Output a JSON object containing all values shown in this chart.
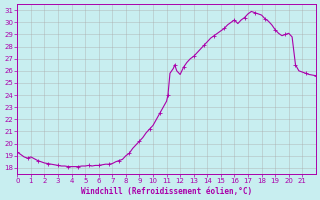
{
  "title": "",
  "xlabel": "Windchill (Refroidissement éolien,°C)",
  "ylabel": "",
  "background_color": "#c8eef0",
  "line_color": "#aa00aa",
  "grid_color": "#aaaaaa",
  "ylim": [
    17.5,
    31.5
  ],
  "xlim": [
    0,
    22
  ],
  "yticks": [
    18,
    19,
    20,
    21,
    22,
    23,
    24,
    25,
    26,
    27,
    28,
    29,
    30,
    31
  ],
  "xticks": [
    0,
    1,
    2,
    3,
    4,
    5,
    6,
    7,
    8,
    9,
    10,
    11,
    12,
    13,
    14,
    15,
    16,
    17,
    18,
    19,
    20,
    21
  ],
  "x": [
    0,
    0.25,
    0.5,
    0.75,
    1.0,
    1.25,
    1.5,
    1.75,
    2.0,
    2.25,
    2.5,
    2.75,
    3.0,
    3.25,
    3.5,
    3.75,
    4.0,
    4.25,
    4.5,
    4.75,
    5.0,
    5.25,
    5.5,
    5.75,
    6.0,
    6.25,
    6.5,
    6.75,
    7.0,
    7.25,
    7.5,
    7.75,
    8.0,
    8.25,
    8.5,
    8.75,
    9.0,
    9.25,
    9.5,
    9.75,
    10.0,
    10.25,
    10.5,
    10.75,
    11.0,
    11.1,
    11.25,
    11.5,
    11.6,
    11.75,
    12.0,
    12.25,
    12.5,
    12.75,
    13.0,
    13.25,
    13.5,
    13.75,
    14.0,
    14.25,
    14.5,
    14.75,
    15.0,
    15.25,
    15.5,
    15.75,
    16.0,
    16.25,
    16.5,
    16.75,
    17.0,
    17.25,
    17.5,
    17.75,
    18.0,
    18.25,
    18.5,
    18.75,
    19.0,
    19.25,
    19.5,
    19.75,
    20.0,
    20.25,
    20.5,
    20.75,
    21.0,
    21.25,
    21.5,
    21.75,
    22.0
  ],
  "y": [
    19.3,
    19.1,
    18.9,
    18.8,
    18.9,
    18.75,
    18.6,
    18.5,
    18.4,
    18.35,
    18.3,
    18.25,
    18.2,
    18.15,
    18.15,
    18.1,
    18.1,
    18.1,
    18.1,
    18.15,
    18.15,
    18.2,
    18.15,
    18.2,
    18.2,
    18.25,
    18.3,
    18.3,
    18.35,
    18.5,
    18.6,
    18.7,
    19.0,
    19.2,
    19.6,
    19.9,
    20.2,
    20.5,
    20.9,
    21.2,
    21.5,
    22.0,
    22.5,
    23.0,
    23.5,
    24.0,
    25.8,
    26.2,
    26.5,
    26.0,
    25.7,
    26.3,
    26.7,
    27.0,
    27.2,
    27.5,
    27.8,
    28.1,
    28.4,
    28.7,
    28.9,
    29.1,
    29.3,
    29.5,
    29.8,
    30.0,
    30.2,
    29.9,
    30.2,
    30.4,
    30.7,
    30.9,
    30.8,
    30.7,
    30.6,
    30.3,
    30.1,
    29.8,
    29.4,
    29.1,
    28.9,
    29.0,
    29.1,
    28.8,
    26.5,
    26.0,
    25.9,
    25.8,
    25.7,
    25.65,
    25.6
  ]
}
